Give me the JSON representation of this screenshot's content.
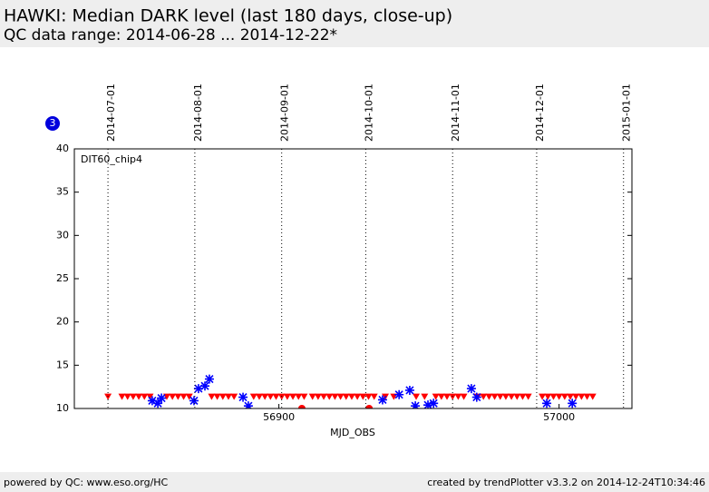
{
  "chart_data": {
    "type": "scatter",
    "title": "HAWKI: Median DARK level (last 180 days, close-up)",
    "subtitle": "QC data range: 2014-06-28 ... 2014-12-22*",
    "annotation": "DIT60_chip4",
    "badge": "3",
    "x_label": "MJD_OBS",
    "footer_left": "powered by QC: www.eso.org/HC",
    "footer_right": "created by trendPlotter v3.3.2 on 2014-12-24T10:34:46",
    "xlim": [
      56827,
      57026
    ],
    "ylim": [
      10,
      40
    ],
    "xticks": [
      56900,
      57000
    ],
    "yticks": [
      10,
      15,
      20,
      25,
      30,
      35,
      40
    ],
    "top_xticks": [
      {
        "value": 56839,
        "label": "2014-07-01"
      },
      {
        "value": 56870,
        "label": "2014-08-01"
      },
      {
        "value": 56901,
        "label": "2014-09-01"
      },
      {
        "value": 56931,
        "label": "2014-10-01"
      },
      {
        "value": 56962,
        "label": "2014-11-01"
      },
      {
        "value": 56992,
        "label": "2014-12-01"
      },
      {
        "value": 57023,
        "label": "2015-01-01"
      }
    ],
    "grid": true,
    "series": [
      {
        "marker": "triangle",
        "color": "#ff0000",
        "x": [
          56839,
          56844,
          56846,
          56848,
          56850,
          56852,
          56854,
          56860,
          56862,
          56864,
          56866,
          56868,
          56876,
          56878,
          56880,
          56882,
          56884,
          56891,
          56893,
          56895,
          56897,
          56899,
          56901,
          56903,
          56905,
          56907,
          56909,
          56912,
          56914,
          56916,
          56918,
          56920,
          56922,
          56924,
          56926,
          56928,
          56930,
          56932,
          56934,
          56938,
          56941,
          56949,
          56952,
          56956,
          56958,
          56960,
          56962,
          56964,
          56966,
          56971,
          56973,
          56975,
          56977,
          56979,
          56981,
          56983,
          56985,
          56987,
          56989,
          56994,
          56996,
          56998,
          57000,
          57002,
          57004,
          57006,
          57008,
          57010,
          57012
        ],
        "values": [
          11.3,
          11.3,
          11.3,
          11.3,
          11.3,
          11.3,
          11.3,
          11.3,
          11.3,
          11.3,
          11.3,
          11.3,
          11.3,
          11.3,
          11.3,
          11.3,
          11.3,
          11.3,
          11.3,
          11.3,
          11.3,
          11.3,
          11.3,
          11.3,
          11.3,
          11.3,
          11.3,
          11.3,
          11.3,
          11.3,
          11.3,
          11.3,
          11.3,
          11.3,
          11.3,
          11.3,
          11.3,
          11.3,
          11.3,
          11.3,
          11.3,
          11.3,
          11.3,
          11.3,
          11.3,
          11.3,
          11.3,
          11.3,
          11.3,
          11.3,
          11.3,
          11.3,
          11.3,
          11.3,
          11.3,
          11.3,
          11.3,
          11.3,
          11.3,
          11.3,
          11.3,
          11.3,
          11.3,
          11.3,
          11.3,
          11.3,
          11.3,
          11.3,
          11.3
        ]
      },
      {
        "marker": "star",
        "color": "#0000ff",
        "x": [
          56854.8,
          56856.8,
          56858.1,
          56869.7,
          56871.3,
          56873.6,
          56875.2,
          56887.2,
          56889.1,
          56937.0,
          56942.9,
          56946.7,
          56948.7,
          56953.2,
          56955.2,
          56968.7,
          56970.6,
          56995.6,
          57004.7
        ],
        "values": [
          10.9,
          10.6,
          11.2,
          10.9,
          12.3,
          12.6,
          13.4,
          11.3,
          10.3,
          11.0,
          11.6,
          12.1,
          10.3,
          10.4,
          10.6,
          12.3,
          11.3,
          10.6,
          10.6
        ]
      },
      {
        "marker": "circle",
        "color": "#ff0000",
        "x": [
          56908.2,
          56932.2
        ],
        "values": [
          10,
          10
        ]
      }
    ]
  }
}
